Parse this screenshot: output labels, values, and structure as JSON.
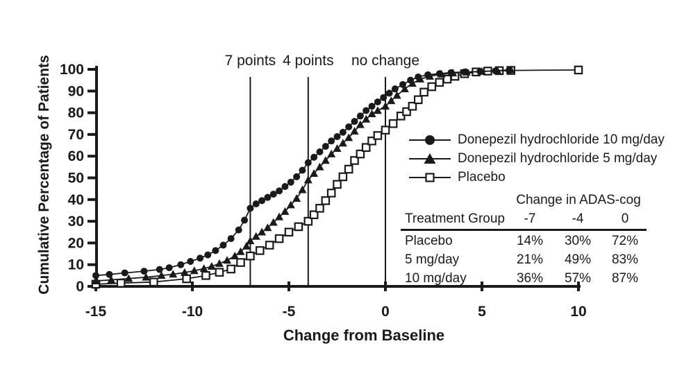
{
  "figure": {
    "ink_color": "#1a1a1a",
    "background_color": "#ffffff"
  },
  "chart_data": {
    "type": "line",
    "title": "",
    "xlabel": "Change from Baseline",
    "ylabel": "Cumulative Percentage of Patients",
    "xlim": [
      -15,
      10
    ],
    "ylim": [
      0,
      100
    ],
    "x_ticks": [
      -15,
      -10,
      -5,
      0,
      5,
      10
    ],
    "y_ticks": [
      0,
      10,
      20,
      30,
      40,
      50,
      60,
      70,
      80,
      90,
      100
    ],
    "grid": false,
    "legend_position": "right-middle",
    "reference_lines": [
      {
        "x": -7,
        "label": "7 points"
      },
      {
        "x": -4,
        "label": "4 points"
      },
      {
        "x": 0,
        "label": "no change"
      }
    ],
    "series": [
      {
        "name": "Donepezil hydrochloride 10 mg/day",
        "marker": "filled-circle",
        "points": [
          [
            -15,
            5
          ],
          [
            -14.3,
            5.5
          ],
          [
            -13.5,
            6.2
          ],
          [
            -12.5,
            7
          ],
          [
            -11.7,
            7.8
          ],
          [
            -11.2,
            8.6
          ],
          [
            -10.6,
            10
          ],
          [
            -10.1,
            11.5
          ],
          [
            -9.6,
            13
          ],
          [
            -9.2,
            14.5
          ],
          [
            -8.8,
            16.5
          ],
          [
            -8.4,
            19
          ],
          [
            -8,
            22
          ],
          [
            -7.6,
            26
          ],
          [
            -7.3,
            30.5
          ],
          [
            -7,
            36
          ],
          [
            -6.7,
            38
          ],
          [
            -6.4,
            39.5
          ],
          [
            -6.1,
            41
          ],
          [
            -5.8,
            42.5
          ],
          [
            -5.5,
            44
          ],
          [
            -5.2,
            46
          ],
          [
            -4.9,
            48
          ],
          [
            -4.6,
            50.5
          ],
          [
            -4.3,
            53.5
          ],
          [
            -4,
            57
          ],
          [
            -3.7,
            59.5
          ],
          [
            -3.4,
            62
          ],
          [
            -3.1,
            64.5
          ],
          [
            -2.8,
            67
          ],
          [
            -2.5,
            69
          ],
          [
            -2.2,
            71
          ],
          [
            -1.9,
            73.5
          ],
          [
            -1.6,
            76
          ],
          [
            -1.3,
            78.5
          ],
          [
            -1,
            81
          ],
          [
            -0.7,
            83
          ],
          [
            -0.4,
            85
          ],
          [
            -0.1,
            87
          ],
          [
            0.2,
            89
          ],
          [
            0.5,
            91
          ],
          [
            0.9,
            93
          ],
          [
            1.3,
            95
          ],
          [
            1.7,
            96.5
          ],
          [
            2.2,
            97.5
          ],
          [
            2.8,
            98
          ],
          [
            3.4,
            98.5
          ],
          [
            4.1,
            98.8
          ],
          [
            4.9,
            99
          ],
          [
            5.7,
            99.3
          ],
          [
            6.4,
            99.5
          ]
        ]
      },
      {
        "name": "Donepezil hydrochloride 5 mg/day",
        "marker": "filled-triangle",
        "points": [
          [
            -15,
            2.5
          ],
          [
            -14.2,
            3
          ],
          [
            -13.3,
            3.6
          ],
          [
            -12.4,
            4.2
          ],
          [
            -11.6,
            5
          ],
          [
            -11,
            5.6
          ],
          [
            -10.4,
            6.4
          ],
          [
            -9.9,
            7.2
          ],
          [
            -9.4,
            8.2
          ],
          [
            -9,
            9.2
          ],
          [
            -8.6,
            10.5
          ],
          [
            -8.2,
            12
          ],
          [
            -7.8,
            14
          ],
          [
            -7.5,
            16
          ],
          [
            -7.2,
            18.5
          ],
          [
            -7,
            21
          ],
          [
            -6.7,
            23
          ],
          [
            -6.4,
            25
          ],
          [
            -6.1,
            27
          ],
          [
            -5.8,
            29.5
          ],
          [
            -5.5,
            32
          ],
          [
            -5.2,
            34.5
          ],
          [
            -4.9,
            37.5
          ],
          [
            -4.6,
            40.5
          ],
          [
            -4.3,
            44.5
          ],
          [
            -4,
            49
          ],
          [
            -3.7,
            52
          ],
          [
            -3.4,
            55
          ],
          [
            -3.1,
            58
          ],
          [
            -2.8,
            61
          ],
          [
            -2.5,
            63.5
          ],
          [
            -2.2,
            66
          ],
          [
            -1.9,
            68.5
          ],
          [
            -1.6,
            71.5
          ],
          [
            -1.3,
            74.5
          ],
          [
            -1,
            77
          ],
          [
            -0.7,
            79.5
          ],
          [
            -0.4,
            81
          ],
          [
            0,
            83
          ],
          [
            0.3,
            85.5
          ],
          [
            0.6,
            88
          ],
          [
            1,
            91
          ],
          [
            1.4,
            93.5
          ],
          [
            1.8,
            95.5
          ],
          [
            2.3,
            96.8
          ],
          [
            2.9,
            97.8
          ],
          [
            3.5,
            98.3
          ],
          [
            4.2,
            98.7
          ],
          [
            5,
            99
          ],
          [
            5.8,
            99.4
          ],
          [
            6.5,
            99.8
          ]
        ]
      },
      {
        "name": "Placebo",
        "marker": "open-square",
        "points": [
          [
            -15,
            1
          ],
          [
            -13.7,
            1.5
          ],
          [
            -12,
            2
          ],
          [
            -10.3,
            3.5
          ],
          [
            -9.3,
            5
          ],
          [
            -8.6,
            6.5
          ],
          [
            -8,
            8
          ],
          [
            -7.5,
            11
          ],
          [
            -7,
            14
          ],
          [
            -6.5,
            16.5
          ],
          [
            -6,
            19
          ],
          [
            -5.5,
            22
          ],
          [
            -5,
            25
          ],
          [
            -4.5,
            27.5
          ],
          [
            -4,
            30
          ],
          [
            -3.7,
            33
          ],
          [
            -3.4,
            36
          ],
          [
            -3.1,
            39.5
          ],
          [
            -2.8,
            43
          ],
          [
            -2.5,
            47
          ],
          [
            -2.2,
            50.5
          ],
          [
            -1.9,
            54
          ],
          [
            -1.6,
            58
          ],
          [
            -1.3,
            61
          ],
          [
            -1,
            64
          ],
          [
            -0.7,
            67
          ],
          [
            -0.4,
            69.5
          ],
          [
            0,
            72
          ],
          [
            0.4,
            75
          ],
          [
            0.8,
            78.5
          ],
          [
            1.1,
            80.5
          ],
          [
            1.4,
            83
          ],
          [
            1.7,
            86
          ],
          [
            2,
            89.5
          ],
          [
            2.4,
            92
          ],
          [
            2.8,
            94
          ],
          [
            3.2,
            95.5
          ],
          [
            3.6,
            96.8
          ],
          [
            4.1,
            98
          ],
          [
            4.7,
            98.8
          ],
          [
            5.3,
            99.2
          ],
          [
            5.9,
            99.4
          ],
          [
            6.5,
            99.5
          ],
          [
            10,
            99.7
          ]
        ]
      }
    ]
  },
  "table": {
    "title": "Change in ADAS-cog",
    "columns": [
      "Treatment Group",
      "-7",
      "-4",
      "0"
    ],
    "rows": [
      {
        "group": "Placebo",
        "values": [
          "14%",
          "30%",
          "72%"
        ]
      },
      {
        "group": "5 mg/day",
        "values": [
          "21%",
          "49%",
          "83%"
        ]
      },
      {
        "group": "10 mg/day",
        "values": [
          "36%",
          "57%",
          "87%"
        ]
      }
    ]
  }
}
